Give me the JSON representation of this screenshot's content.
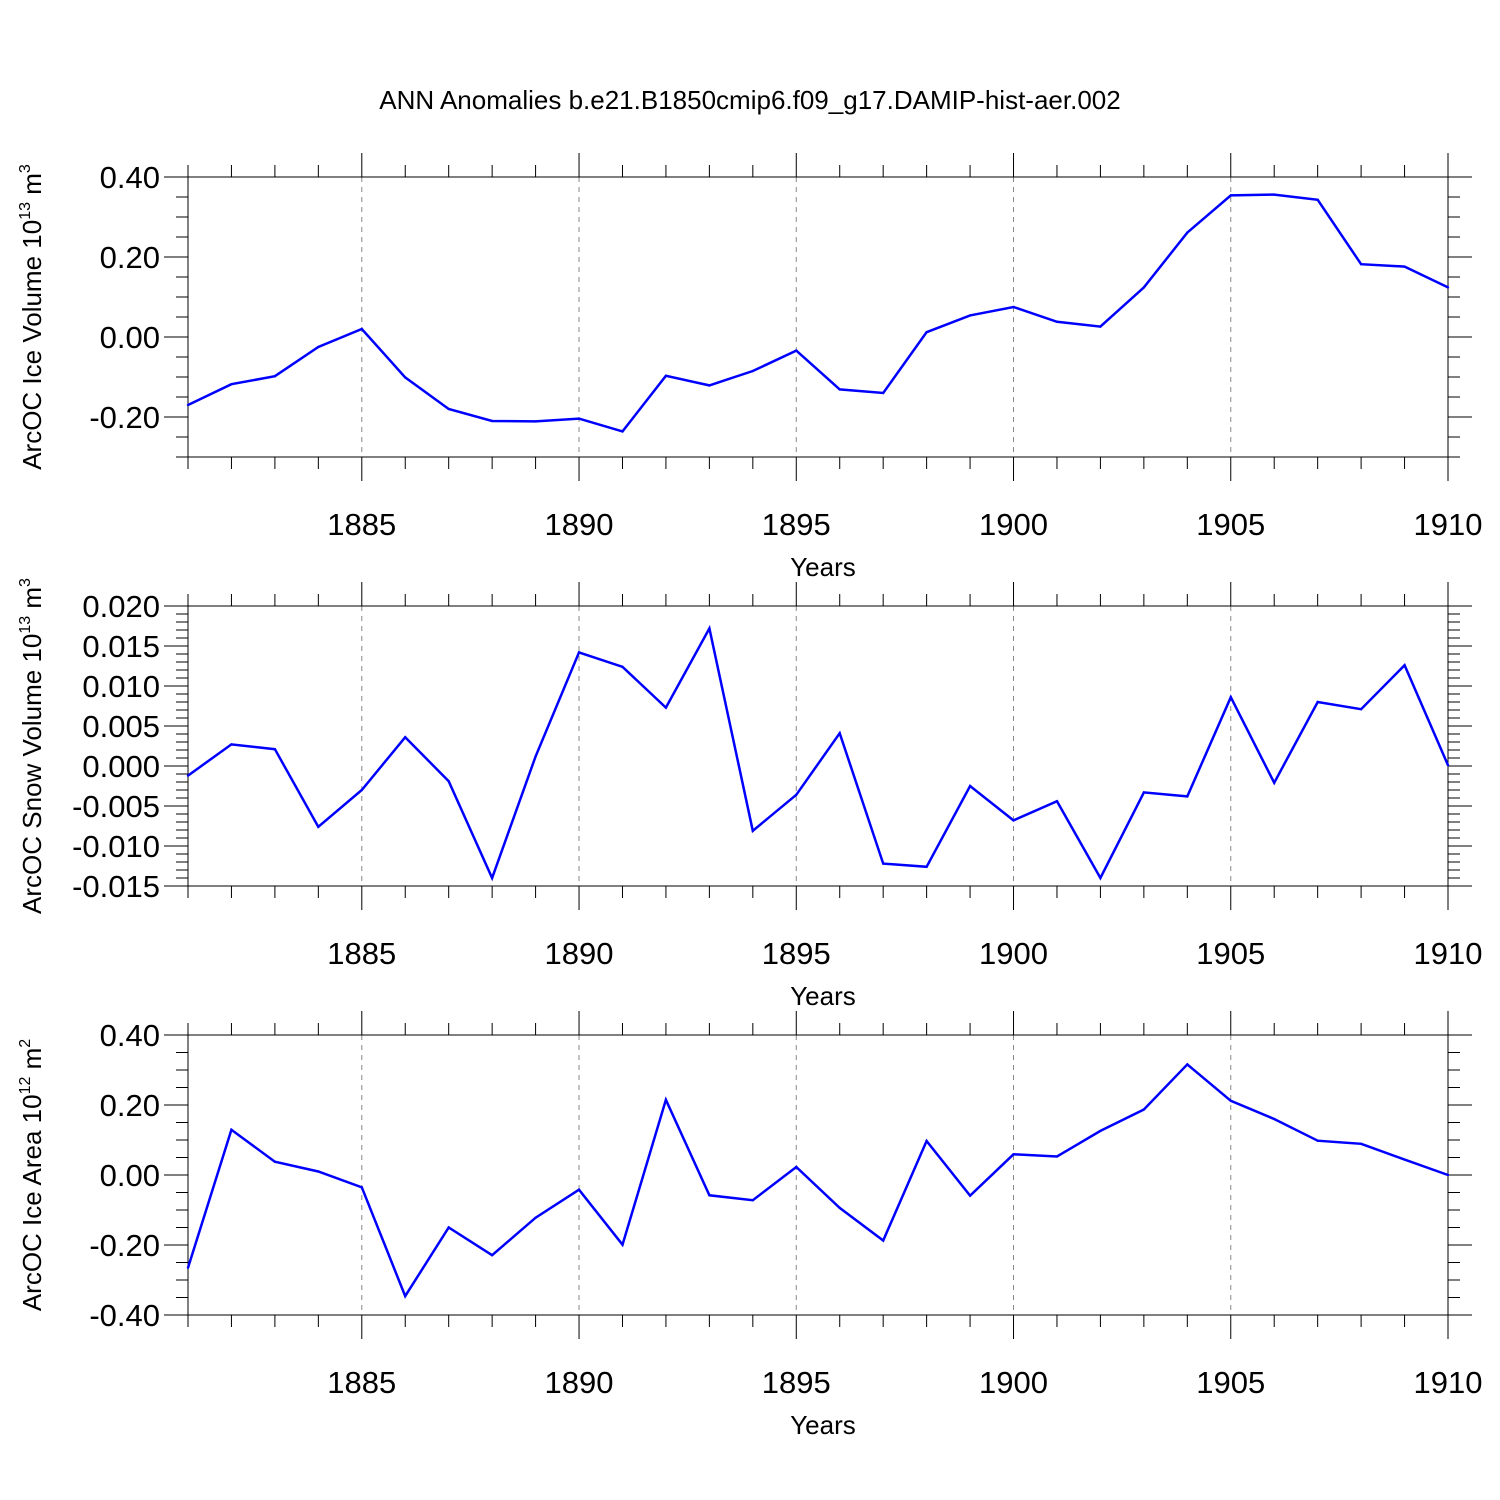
{
  "title": "ANN Anomalies b.e21.B1850cmip6.f09_g17.DAMIP-hist-aer.002",
  "line_color": "#0000ff",
  "chart_data": [
    {
      "type": "line",
      "ylabel": {
        "prefix": "ArcOC Ice Volume 10",
        "exp": "13",
        "unit": " m",
        "unit_exp": "3"
      },
      "xlabel": "Years",
      "xlim": [
        1881,
        1910
      ],
      "ylim": [
        -0.3,
        0.4
      ],
      "yticks": [
        -0.2,
        0.0,
        0.2,
        0.4
      ],
      "ytick_labels": [
        "-0.20",
        "0.00",
        "0.20",
        "0.40"
      ],
      "yminor": 0.05,
      "xticks": [
        1885,
        1890,
        1895,
        1900,
        1905,
        1910
      ],
      "xtick_labels": [
        "1885",
        "1890",
        "1895",
        "1900",
        "1905",
        "1910"
      ],
      "grid": "dashed vertical at major x ticks",
      "x": [
        1881,
        1882,
        1883,
        1884,
        1885,
        1886,
        1887,
        1888,
        1889,
        1890,
        1891,
        1892,
        1893,
        1894,
        1895,
        1896,
        1897,
        1898,
        1899,
        1900,
        1901,
        1902,
        1903,
        1904,
        1905,
        1906,
        1907,
        1908,
        1909,
        1910
      ],
      "values": [
        -0.17,
        -0.118,
        -0.098,
        -0.025,
        0.02,
        -0.101,
        -0.18,
        -0.21,
        -0.211,
        -0.204,
        -0.236,
        -0.097,
        -0.121,
        -0.085,
        -0.034,
        -0.131,
        -0.14,
        0.012,
        0.054,
        0.075,
        0.038,
        0.026,
        0.124,
        0.261,
        0.354,
        0.356,
        0.343,
        0.182,
        0.176,
        0.124
      ]
    },
    {
      "type": "line",
      "ylabel": {
        "prefix": "ArcOC Snow Volume 10",
        "exp": "13",
        "unit": " m",
        "unit_exp": "3"
      },
      "xlabel": "Years",
      "xlim": [
        1881,
        1910
      ],
      "ylim": [
        -0.015,
        0.02
      ],
      "yticks": [
        -0.015,
        -0.01,
        -0.005,
        0.0,
        0.005,
        0.01,
        0.015,
        0.02
      ],
      "ytick_labels": [
        "-0.015",
        "-0.010",
        "-0.005",
        "0.000",
        "0.005",
        "0.010",
        "0.015",
        "0.020"
      ],
      "yminor": 0.001,
      "xticks": [
        1885,
        1890,
        1895,
        1900,
        1905,
        1910
      ],
      "xtick_labels": [
        "1885",
        "1890",
        "1895",
        "1900",
        "1905",
        "1910"
      ],
      "grid": "dashed vertical at major x ticks",
      "x": [
        1881,
        1882,
        1883,
        1884,
        1885,
        1886,
        1887,
        1888,
        1889,
        1890,
        1891,
        1892,
        1893,
        1894,
        1895,
        1896,
        1897,
        1898,
        1899,
        1900,
        1901,
        1902,
        1903,
        1904,
        1905,
        1906,
        1907,
        1908,
        1909,
        1910
      ],
      "values": [
        -0.0012,
        0.0027,
        0.0021,
        -0.0076,
        -0.003,
        0.0036,
        -0.0019,
        -0.014,
        0.0012,
        0.0142,
        0.0124,
        0.0073,
        0.0172,
        -0.0081,
        -0.0036,
        0.0041,
        -0.0122,
        -0.0126,
        -0.0025,
        -0.0068,
        -0.0044,
        -0.014,
        -0.0033,
        -0.0038,
        0.0086,
        -0.0021,
        0.008,
        0.0071,
        0.0126,
        0.0001
      ]
    },
    {
      "type": "line",
      "ylabel": {
        "prefix": "ArcOC Ice Area 10",
        "exp": "12",
        "unit": " m",
        "unit_exp": "2"
      },
      "xlabel": "Years",
      "xlim": [
        1881,
        1910
      ],
      "ylim": [
        -0.4,
        0.4
      ],
      "yticks": [
        -0.4,
        -0.2,
        0.0,
        0.2,
        0.4
      ],
      "ytick_labels": [
        "-0.40",
        "-0.20",
        "0.00",
        "0.20",
        "0.40"
      ],
      "yminor": 0.05,
      "xticks": [
        1885,
        1890,
        1895,
        1900,
        1905,
        1910
      ],
      "xtick_labels": [
        "1885",
        "1890",
        "1895",
        "1900",
        "1905",
        "1910"
      ],
      "grid": "dashed vertical at major x ticks",
      "x": [
        1881,
        1882,
        1883,
        1884,
        1885,
        1886,
        1887,
        1888,
        1889,
        1890,
        1891,
        1892,
        1893,
        1894,
        1895,
        1896,
        1897,
        1898,
        1899,
        1900,
        1901,
        1902,
        1903,
        1904,
        1905,
        1906,
        1907,
        1908,
        1909,
        1910
      ],
      "values": [
        -0.265,
        0.129,
        0.038,
        0.01,
        -0.035,
        -0.346,
        -0.15,
        -0.229,
        -0.122,
        -0.042,
        -0.199,
        0.215,
        -0.058,
        -0.072,
        0.023,
        -0.094,
        -0.187,
        0.097,
        -0.059,
        0.059,
        0.053,
        0.126,
        0.187,
        0.316,
        0.212,
        0.16,
        0.098,
        0.089,
        0.044,
        0.0
      ]
    }
  ]
}
